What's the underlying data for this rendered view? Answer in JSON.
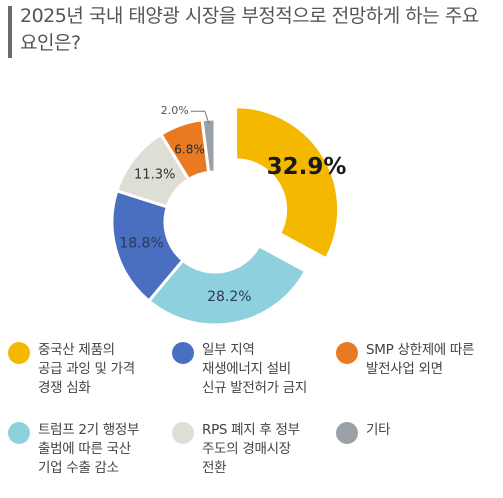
{
  "header": {
    "title": "2025년 국내 태양광 시장을 부정적으로 전망하게 하는 주요 요인은?"
  },
  "chart_data": {
    "type": "pie",
    "donut": true,
    "slices": [
      {
        "label": "중국산 제품의 공급 과잉 및 가격 경쟁 심화",
        "value": 32.9,
        "display": "32.9%",
        "color": "#f5b800",
        "exploded": true
      },
      {
        "label": "트럼프 2기 행정부 출범에 따른 국산 기업 수출 감소",
        "value": 28.2,
        "display": "28.2%",
        "color": "#8fd0de"
      },
      {
        "label": "일부 지역 재생에너지 설비 신규 발전허가 금지",
        "value": 18.8,
        "display": "18.8%",
        "color": "#4a6fc1"
      },
      {
        "label": "RPS 폐지 후 정부 주도의 경매시장 전환",
        "value": 11.3,
        "display": "11.3%",
        "color": "#deddd6"
      },
      {
        "label": "SMP 상한제에 따른 발전사업 외면",
        "value": 6.8,
        "display": "6.8%",
        "color": "#ea7a22"
      },
      {
        "label": "기타",
        "value": 2.0,
        "display": "2.0%",
        "color": "#9aa0a6"
      }
    ]
  },
  "legend": {
    "items": [
      {
        "text": "중국산 제품의\n공급 과잉 및 가격\n경쟁 심화",
        "color": "#f5b800",
        "icon": "circle"
      },
      {
        "text": "일부 지역\n재생에너지 설비\n신규 발전허가 금지",
        "color": "#4a6fc1",
        "icon": "circle"
      },
      {
        "text": "SMP 상한제에 따른\n발전사업 외면",
        "color": "#ea7a22",
        "icon": "circle"
      },
      {
        "text": "트럼프 2기 행정부\n출범에 따른 국산\n기업 수출 감소",
        "color": "#8fd0de",
        "icon": "circle"
      },
      {
        "text": "RPS 폐지 후 정부\n주도의 경매시장\n전환",
        "color": "#deddd6",
        "icon": "circle"
      },
      {
        "text": "기타",
        "color": "#9aa0a6",
        "icon": "circle"
      }
    ]
  }
}
